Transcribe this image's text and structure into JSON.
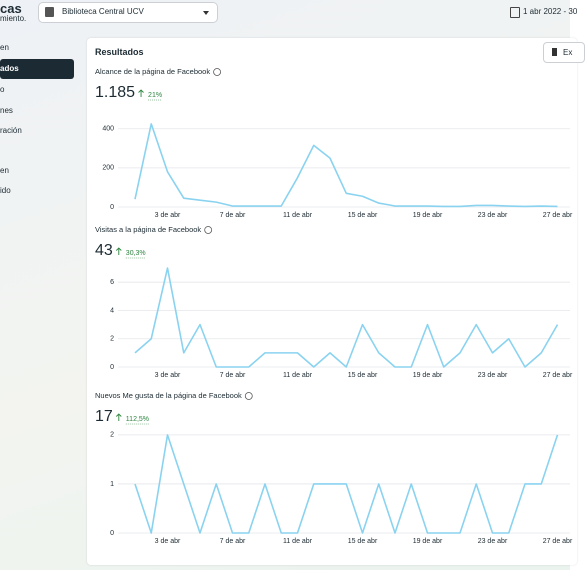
{
  "header": {
    "title": "cas",
    "subtitle": "miento.",
    "account": "Biblioteca Central UCV",
    "date_range": "1 abr 2022 - 30"
  },
  "sidebar": {
    "items": [
      "en",
      "ados",
      "o",
      "nes",
      "ración",
      "en",
      "ido"
    ]
  },
  "card": {
    "title": "Resultados",
    "export": "Ex"
  },
  "chart_data": [
    {
      "type": "line",
      "title": "Alcance de la página de Facebook",
      "total": "1.185",
      "change": "21%",
      "categories": [
        null,
        null,
        "3 de abr",
        null,
        null,
        null,
        "7 de abr",
        null,
        null,
        null,
        "11 de abr",
        null,
        null,
        null,
        "15 de abr",
        null,
        null,
        null,
        "19 de abr",
        null,
        null,
        null,
        "23 de abr",
        null,
        null,
        null,
        "27 de abr"
      ],
      "values": [
        40,
        425,
        180,
        45,
        35,
        25,
        5,
        5,
        5,
        5,
        150,
        315,
        250,
        70,
        55,
        20,
        5,
        5,
        5,
        3,
        3,
        8,
        8,
        5,
        3,
        5,
        3
      ],
      "color": "#8ad3f0",
      "ylim": [
        0,
        450
      ],
      "yticks": [
        0,
        200,
        400
      ],
      "grid": true
    },
    {
      "type": "line",
      "title": "Visitas a la página de Facebook",
      "total": "43",
      "change": "30,3%",
      "categories": [
        null,
        null,
        "3 de abr",
        null,
        null,
        null,
        "7 de abr",
        null,
        null,
        null,
        "11 de abr",
        null,
        null,
        null,
        "15 de abr",
        null,
        null,
        null,
        "19 de abr",
        null,
        null,
        null,
        "23 de abr",
        null,
        null,
        null,
        "27 de abr"
      ],
      "values": [
        1,
        2,
        7,
        1,
        3,
        0,
        0,
        0,
        1,
        1,
        1,
        0,
        1,
        0,
        3,
        1,
        0,
        0,
        3,
        0,
        1,
        3,
        1,
        2,
        0,
        1,
        3
      ],
      "color": "#8ad3f0",
      "ylim": [
        0,
        7.5
      ],
      "yticks": [
        0,
        2,
        4,
        6
      ],
      "grid": true
    },
    {
      "type": "line",
      "title": "Nuevos Me gusta de la página de Facebook",
      "total": "17",
      "change": "112,5%",
      "categories": [
        null,
        null,
        "3 de abr",
        null,
        null,
        null,
        "7 de abr",
        null,
        null,
        null,
        "11 de abr",
        null,
        null,
        null,
        "15 de abr",
        null,
        null,
        null,
        "19 de abr",
        null,
        null,
        null,
        "23 de abr",
        null,
        null,
        null,
        "27 de abr"
      ],
      "values": [
        1,
        0,
        2,
        1,
        0,
        1,
        0,
        0,
        1,
        0,
        0,
        1,
        1,
        1,
        0,
        1,
        0,
        1,
        0,
        0,
        0,
        1,
        0,
        0,
        1,
        1,
        2
      ],
      "color": "#8ad3f0",
      "ylim": [
        0,
        2.1
      ],
      "yticks": [
        0,
        1,
        2
      ],
      "grid": true
    }
  ]
}
